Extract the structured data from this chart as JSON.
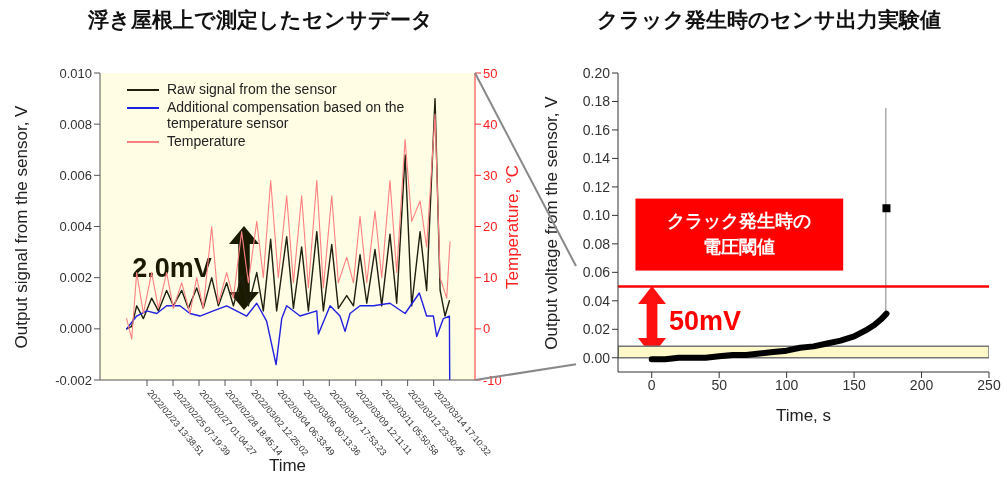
{
  "chart_data": [
    {
      "type": "line",
      "title": "浮き屋根上で測定したセンサデータ",
      "xlabel": "Time",
      "ylabel": "Output signal from the sensor, V",
      "y2label": "Temperature, °C",
      "xlim": [
        "2022-02-20T10:17",
        "2022-03-17T11:29"
      ],
      "xticks": [
        {
          "value": "2022-02-23T13:39",
          "label": "2022/02/23 13:38:51"
        },
        {
          "value": "2022-02-25T07:20",
          "label": "2022/02/25 07:19:39"
        },
        {
          "value": "2022-02-27T01:04",
          "label": "2022/02/27 01:04:27"
        },
        {
          "value": "2022-02-28T18:45",
          "label": "2022/02/28 18:45:14"
        },
        {
          "value": "2022-03-02T12:25",
          "label": "2022/03/02 12:25:02"
        },
        {
          "value": "2022-03-04T06:34",
          "label": "2022/03/04 06:33:49"
        },
        {
          "value": "2022-03-06T00:14",
          "label": "2022/03/06 00:13:36"
        },
        {
          "value": "2022-03-07T17:53",
          "label": "2022/03/07 17:53:23"
        },
        {
          "value": "2022-03-09T12:11",
          "label": "2022/03/09 12:11:11"
        },
        {
          "value": "2022-03-11T05:51",
          "label": "2022/03/11 05:50:58"
        },
        {
          "value": "2022-03-12T23:31",
          "label": "2022/03/12 23:30:45"
        },
        {
          "value": "2022-03-14T17:11",
          "label": "2022/03/14 17:10:32"
        }
      ],
      "ylim": [
        -0.002,
        0.01
      ],
      "yticks": [
        -0.002,
        {
          "value": 0,
          "label": "0.000"
        },
        0.002,
        0.004,
        0.006,
        0.008,
        {
          "value": 0.01,
          "label": "0.010"
        }
      ],
      "y2lim": [
        -10,
        50
      ],
      "y2ticks": [
        -10,
        0,
        10,
        20,
        30,
        40,
        50
      ],
      "legend": "top left",
      "annotations": [
        "2.0mV"
      ],
      "series": [
        {
          "name": "Raw signal from the sensor",
          "color": "#1f2010",
          "x": [
            "2022-02-22T05:00",
            "2022-02-22T13:10",
            "2022-02-22T21:05",
            "2022-02-23T07:53",
            "2022-02-23T21:05",
            "2022-02-24T07:53",
            "2022-02-24T21:05",
            "2022-02-25T07:53",
            "2022-02-25T21:20",
            "2022-02-26T07:53",
            "2022-02-26T21:20",
            "2022-02-27T07:53",
            "2022-02-27T21:20",
            "2022-02-28T08:08",
            "2022-02-28T21:20",
            "2022-03-01T08:08",
            "2022-03-01T21:20",
            "2022-03-02T08:08",
            "2022-03-02T21:34",
            "2022-03-03T08:08",
            "2022-03-03T19:53",
            "2022-03-04T05:29",
            "2022-03-04T21:34",
            "2022-03-05T08:22",
            "2022-03-05T21:34",
            "2022-03-06T08:22",
            "2022-03-06T21:49",
            "2022-03-07T08:22",
            "2022-03-07T21:49",
            "2022-03-08T08:22",
            "2022-03-08T21:49",
            "2022-03-09T08:37",
            "2022-03-09T19:10",
            "2022-03-10T05:58",
            "2022-03-10T19:10",
            "2022-03-11T05:58",
            "2022-03-11T19:10",
            "2022-03-12T05:58",
            "2022-03-12T19:25",
            "2022-03-13T05:58",
            "2022-03-13T19:25",
            "2022-03-14T05:58",
            "2022-03-14T19:25",
            "2022-03-15T03:34",
            "2022-03-15T11:29",
            "2022-03-15T18:27"
          ],
          "values": [
            0,
            0.0001,
            0.0009,
            0.0004,
            0.0012,
            0.0007,
            0.0015,
            0.0009,
            0.0015,
            0.0008,
            0.0016,
            0.0008,
            0.002,
            0.0009,
            0.0018,
            0.0009,
            0.0021,
            0.0009,
            0.0022,
            0.0007,
            0.0035,
            0.0007,
            0.0036,
            0.0008,
            0.0032,
            0.0007,
            0.0038,
            0.0007,
            0.0033,
            0.0008,
            0.0013,
            0.0009,
            0.0029,
            0.001,
            0.0031,
            0.0009,
            0.0037,
            0.001,
            0.0068,
            0.0009,
            0.0038,
            0.0015,
            0.009,
            0.0015,
            0.0005,
            0.0011
          ]
        },
        {
          "name": "Additional compensation based on the temperature sensor",
          "color": "#2020e0",
          "x": [
            "2022-02-22T05:00",
            "2022-02-22T21:05",
            "2022-02-23T13:10",
            "2022-02-24T05:15",
            "2022-02-24T21:05",
            "2022-02-25T18:27",
            "2022-02-26T10:32",
            "2022-02-27T02:37",
            "2022-02-27T23:58",
            "2022-02-28T21:20",
            "2022-03-02T05:29",
            "2022-03-02T21:34",
            "2022-03-03T13:25",
            "2022-03-04T04:32",
            "2022-03-04T13:39",
            "2022-03-04T21:34",
            "2022-03-05T18:56",
            "2022-03-06T21:49",
            "2022-03-07T00:27",
            "2022-03-07T19:10",
            "2022-03-08T11:01",
            "2022-03-08T19:10",
            "2022-03-09T03:05",
            "2022-03-09T19:10",
            "2022-03-10T16:32",
            "2022-03-11T19:10",
            "2022-03-12T19:25",
            "2022-03-13T18:13",
            "2022-03-14T05:58",
            "2022-03-14T16:46",
            "2022-03-14T22:03",
            "2022-03-15T08:51",
            "2022-03-15T18:27",
            "2022-03-15T18:56"
          ],
          "values": [
            0,
            0.0005,
            0.0007,
            0.0006,
            0.0009,
            0.0009,
            0.0006,
            0.0005,
            0.0007,
            0.0009,
            0.0005,
            0.001,
            0.0003,
            -0.0014,
            0.0004,
            0.0009,
            0.0005,
            0.0007,
            -0.0002,
            0.0009,
            0.0005,
            -0.0001,
            0.0006,
            0.0009,
            0.0009,
            0.001,
            0.0006,
            0.0014,
            0.0005,
            0.0005,
            -0.0003,
            0.0004,
            0.0005,
            -0.002
          ]
        },
        {
          "name": "Temperature",
          "axis": "y2",
          "color": "#ff8080",
          "x": [
            "2022-02-22T05:00",
            "2022-02-22T13:10",
            "2022-02-22T21:05",
            "2022-02-23T07:53",
            "2022-02-23T21:05",
            "2022-02-24T07:53",
            "2022-02-24T21:05",
            "2022-02-25T07:53",
            "2022-02-25T21:20",
            "2022-02-26T10:32",
            "2022-02-26T21:20",
            "2022-02-27T07:53",
            "2022-02-27T21:20",
            "2022-02-28T08:08",
            "2022-02-28T21:20",
            "2022-03-01T08:08",
            "2022-03-01T21:20",
            "2022-03-02T08:08",
            "2022-03-02T21:34",
            "2022-03-03T08:08",
            "2022-03-03T19:53",
            "2022-03-04T08:08",
            "2022-03-04T21:34",
            "2022-03-05T08:22",
            "2022-03-05T21:34",
            "2022-03-06T08:22",
            "2022-03-06T21:49",
            "2022-03-07T08:22",
            "2022-03-07T21:49",
            "2022-03-08T08:22",
            "2022-03-08T21:49",
            "2022-03-09T08:37",
            "2022-03-09T19:10",
            "2022-03-10T05:58",
            "2022-03-10T19:10",
            "2022-03-11T05:58",
            "2022-03-11T19:10",
            "2022-03-12T05:58",
            "2022-03-12T19:25",
            "2022-03-13T05:58",
            "2022-03-13T19:25",
            "2022-03-14T05:58",
            "2022-03-14T19:25",
            "2022-03-15T03:34",
            "2022-03-15T14:08",
            "2022-03-15T19:25"
          ],
          "values": [
            2,
            -2,
            11,
            3,
            11,
            4,
            11,
            4,
            9,
            3,
            10,
            4,
            20,
            5,
            11,
            6,
            19,
            9,
            21,
            10,
            29,
            10,
            26,
            9,
            26,
            8,
            29,
            8,
            26,
            9,
            14,
            9,
            22,
            9,
            23,
            10,
            29,
            11,
            37,
            21,
            25,
            16,
            42,
            10,
            6,
            17
          ]
        }
      ]
    },
    {
      "type": "line",
      "title": "クラック発生時のセンサ出力実験値",
      "xlabel": "Time, s",
      "ylabel": "Output voltage from the sensor, V",
      "xlim": [
        -25,
        250
      ],
      "xticks": [
        0,
        50,
        100,
        150,
        200,
        250
      ],
      "ylim": [
        -0.01,
        0.2
      ],
      "yticks": [
        {
          "value": 0,
          "label": "0.00"
        },
        0.02,
        0.04,
        0.06,
        0.08,
        {
          "value": 0.1,
          "label": "0.10"
        },
        0.12,
        0.14,
        0.16,
        0.18,
        {
          "value": 0.2,
          "label": "0.20"
        }
      ],
      "ref_lines": [
        {
          "axis": "y",
          "value": 0.05,
          "label": "クラック発生時の電圧閾値",
          "color": "#ff0000"
        }
      ],
      "bands": [
        {
          "axis": "y",
          "from": 0,
          "to": 0.008,
          "color": "#fdf8c8"
        }
      ],
      "annotations": [
        "50mV"
      ],
      "series": [
        {
          "color": "#999999",
          "x": [
            173.5,
            173.5
          ],
          "values": [
            0.03,
            0.175
          ]
        },
        {
          "color": "#000000",
          "x": [
            0,
            10,
            20,
            30,
            40,
            50,
            60,
            70,
            80,
            90,
            100,
            110,
            120,
            130,
            140,
            150,
            160,
            165,
            170,
            174
          ],
          "values": [
            -0.001,
            -0.001,
            0,
            0,
            0,
            0.001,
            0.002,
            0.002,
            0.003,
            0.004,
            0.005,
            0.007,
            0.008,
            0.01,
            0.012,
            0.015,
            0.02,
            0.023,
            0.027,
            0.031
          ]
        },
        {
          "type": "scatter",
          "marker": "square",
          "color": "#000000",
          "x": [
            174
          ],
          "values": [
            0.105
          ]
        }
      ]
    }
  ]
}
